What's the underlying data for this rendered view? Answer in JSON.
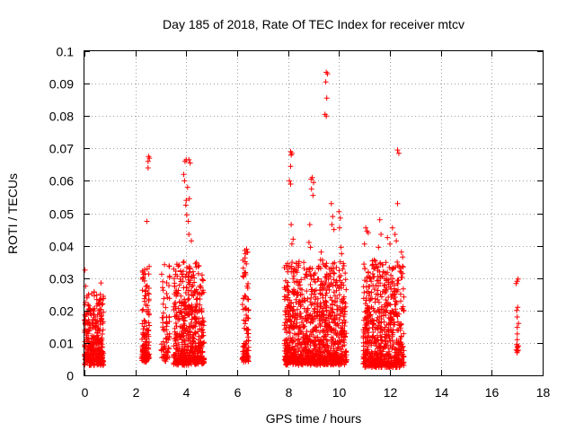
{
  "chart_data": {
    "type": "scatter",
    "title": "Day 185 of 2018, Rate Of TEC Index for receiver mtcv",
    "xlabel": "GPS time / hours",
    "ylabel": "ROTI / TECUs",
    "xlim": [
      0,
      18
    ],
    "ylim": [
      0,
      0.1
    ],
    "x_ticks": [
      0,
      2,
      4,
      6,
      8,
      10,
      12,
      14,
      16,
      18
    ],
    "y_ticks": [
      0,
      0.01,
      0.02,
      0.03,
      0.04,
      0.05,
      0.06,
      0.07,
      0.08,
      0.09,
      0.1
    ],
    "x_tick_labels": [
      "0",
      "2",
      "4",
      "6",
      "8",
      "10",
      "12",
      "14",
      "16",
      "18"
    ],
    "y_tick_labels": [
      "0",
      "0.01",
      "0.02",
      "0.03",
      "0.04",
      "0.05",
      "0.06",
      "0.07",
      "0.08",
      "0.09",
      "0.1"
    ],
    "grid": true,
    "marker": "+",
    "color": "#ff0000",
    "clusters": [
      {
        "x_range": [
          0.0,
          0.75
        ],
        "count": 320,
        "y_typ": [
          0.004,
          0.025
        ]
      },
      {
        "x_range": [
          2.25,
          2.55
        ],
        "count": 140,
        "y_typ": [
          0.005,
          0.034
        ]
      },
      {
        "x_range": [
          3.0,
          3.35
        ],
        "count": 70,
        "y_typ": [
          0.005,
          0.034
        ]
      },
      {
        "x_range": [
          3.5,
          4.7
        ],
        "count": 520,
        "y_typ": [
          0.004,
          0.035
        ]
      },
      {
        "x_range": [
          6.2,
          6.45
        ],
        "count": 90,
        "y_typ": [
          0.005,
          0.039
        ]
      },
      {
        "x_range": [
          7.85,
          10.3
        ],
        "count": 1050,
        "y_typ": [
          0.004,
          0.035
        ]
      },
      {
        "x_range": [
          10.95,
          12.55
        ],
        "count": 650,
        "y_typ": [
          0.003,
          0.035
        ]
      },
      {
        "x_range": [
          16.95,
          17.05
        ],
        "count": 10,
        "y_typ": [
          0.007,
          0.029
        ]
      }
    ],
    "points": [
      {
        "x": 0.02,
        "y": 0.0325
      },
      {
        "x": 0.05,
        "y": 0.0275
      },
      {
        "x": 0.65,
        "y": 0.0285
      },
      {
        "x": 2.45,
        "y": 0.0475
      },
      {
        "x": 2.5,
        "y": 0.066
      },
      {
        "x": 2.52,
        "y": 0.0675
      },
      {
        "x": 2.55,
        "y": 0.067
      },
      {
        "x": 2.5,
        "y": 0.064
      },
      {
        "x": 3.9,
        "y": 0.062
      },
      {
        "x": 3.95,
        "y": 0.066
      },
      {
        "x": 4.0,
        "y": 0.0665
      },
      {
        "x": 4.1,
        "y": 0.0665
      },
      {
        "x": 4.15,
        "y": 0.0655
      },
      {
        "x": 4.05,
        "y": 0.058
      },
      {
        "x": 4.12,
        "y": 0.0545
      },
      {
        "x": 3.98,
        "y": 0.0525
      },
      {
        "x": 4.02,
        "y": 0.0495
      },
      {
        "x": 4.08,
        "y": 0.0475
      },
      {
        "x": 4.1,
        "y": 0.0435
      },
      {
        "x": 4.2,
        "y": 0.0415
      },
      {
        "x": 4.0,
        "y": 0.054
      },
      {
        "x": 3.93,
        "y": 0.06
      },
      {
        "x": 6.3,
        "y": 0.0385
      },
      {
        "x": 6.32,
        "y": 0.0375
      },
      {
        "x": 8.1,
        "y": 0.069
      },
      {
        "x": 8.12,
        "y": 0.068
      },
      {
        "x": 8.15,
        "y": 0.0685
      },
      {
        "x": 8.1,
        "y": 0.0645
      },
      {
        "x": 8.05,
        "y": 0.06
      },
      {
        "x": 8.1,
        "y": 0.059
      },
      {
        "x": 8.12,
        "y": 0.0465
      },
      {
        "x": 8.2,
        "y": 0.042
      },
      {
        "x": 8.15,
        "y": 0.0405
      },
      {
        "x": 8.9,
        "y": 0.0605
      },
      {
        "x": 8.95,
        "y": 0.061
      },
      {
        "x": 9.0,
        "y": 0.0595
      },
      {
        "x": 8.92,
        "y": 0.0575
      },
      {
        "x": 8.98,
        "y": 0.0555
      },
      {
        "x": 8.85,
        "y": 0.0465
      },
      {
        "x": 8.82,
        "y": 0.041
      },
      {
        "x": 8.88,
        "y": 0.0395
      },
      {
        "x": 9.5,
        "y": 0.0935
      },
      {
        "x": 9.55,
        "y": 0.093
      },
      {
        "x": 9.48,
        "y": 0.0905
      },
      {
        "x": 9.52,
        "y": 0.0855
      },
      {
        "x": 9.45,
        "y": 0.0805
      },
      {
        "x": 9.5,
        "y": 0.08
      },
      {
        "x": 9.3,
        "y": 0.038
      },
      {
        "x": 9.35,
        "y": 0.0355
      },
      {
        "x": 9.7,
        "y": 0.053
      },
      {
        "x": 9.75,
        "y": 0.049
      },
      {
        "x": 9.72,
        "y": 0.0465
      },
      {
        "x": 9.8,
        "y": 0.045
      },
      {
        "x": 10.0,
        "y": 0.0505
      },
      {
        "x": 10.05,
        "y": 0.0485
      },
      {
        "x": 10.02,
        "y": 0.0455
      },
      {
        "x": 10.08,
        "y": 0.0395
      },
      {
        "x": 10.1,
        "y": 0.0375
      },
      {
        "x": 10.05,
        "y": 0.035
      },
      {
        "x": 11.05,
        "y": 0.0455
      },
      {
        "x": 11.1,
        "y": 0.0445
      },
      {
        "x": 11.15,
        "y": 0.044
      },
      {
        "x": 11.0,
        "y": 0.0405
      },
      {
        "x": 11.6,
        "y": 0.048
      },
      {
        "x": 11.65,
        "y": 0.0435
      },
      {
        "x": 11.55,
        "y": 0.0395
      },
      {
        "x": 11.9,
        "y": 0.0425
      },
      {
        "x": 12.0,
        "y": 0.0405
      },
      {
        "x": 12.1,
        "y": 0.0455
      },
      {
        "x": 12.2,
        "y": 0.0435
      },
      {
        "x": 12.25,
        "y": 0.0415
      },
      {
        "x": 12.3,
        "y": 0.0695
      },
      {
        "x": 12.35,
        "y": 0.0685
      },
      {
        "x": 12.3,
        "y": 0.053
      },
      {
        "x": 12.45,
        "y": 0.038
      },
      {
        "x": 12.5,
        "y": 0.0365
      },
      {
        "x": 17.0,
        "y": 0.029
      },
      {
        "x": 17.02,
        "y": 0.021
      },
      {
        "x": 16.98,
        "y": 0.02
      },
      {
        "x": 17.0,
        "y": 0.018
      },
      {
        "x": 17.05,
        "y": 0.016
      },
      {
        "x": 17.0,
        "y": 0.011
      },
      {
        "x": 16.98,
        "y": 0.0095
      },
      {
        "x": 17.02,
        "y": 0.0085
      },
      {
        "x": 17.0,
        "y": 0.0075
      }
    ]
  }
}
